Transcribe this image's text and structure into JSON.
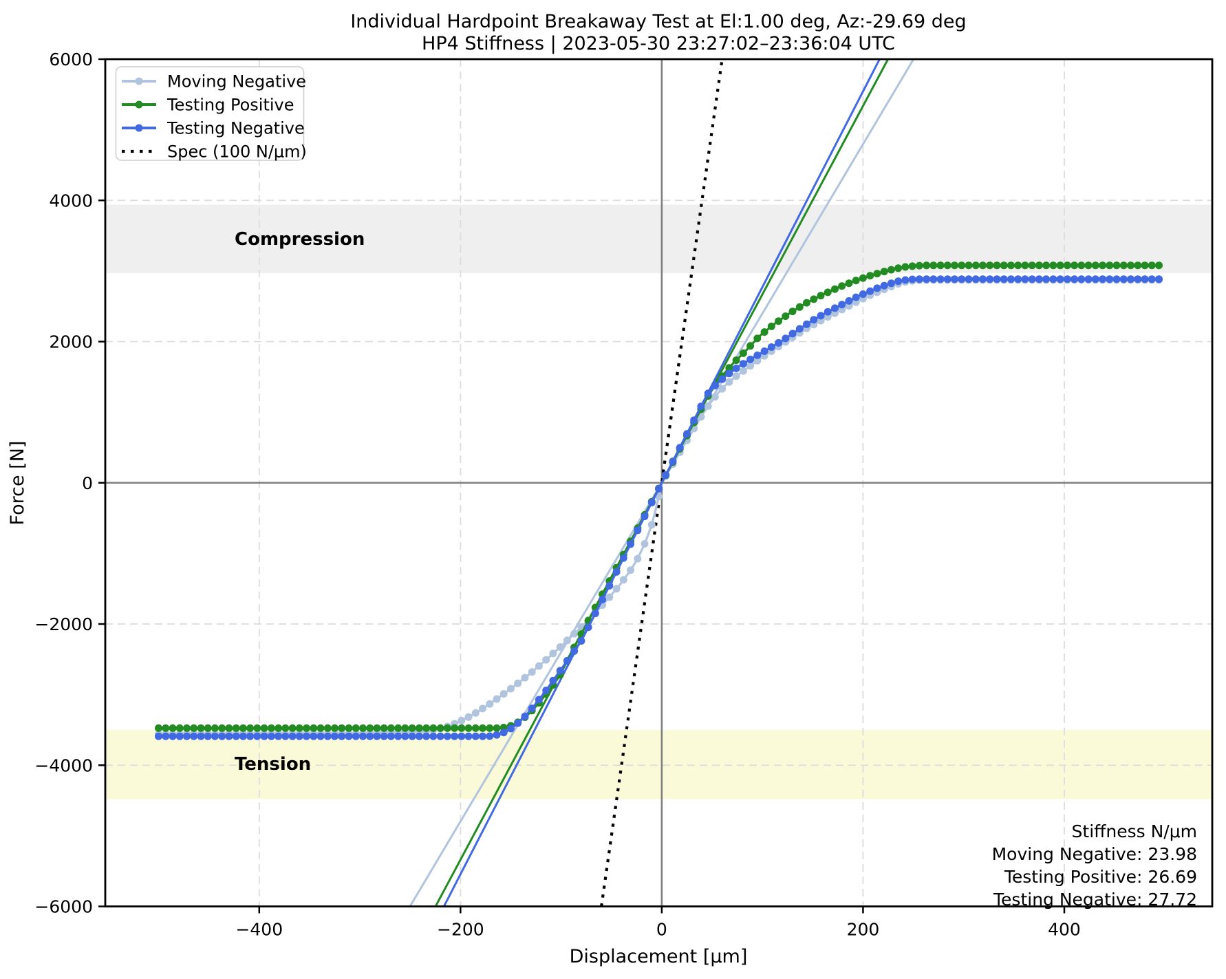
{
  "chart_data": {
    "type": "line",
    "title_line1": "Individual Hardpoint Breakaway Test at El:1.00 deg, Az:-29.69 deg",
    "title_line2": "HP4 Stiffness | 2023-05-30 23:27:02–23:36:04 UTC",
    "xlabel": "Displacement [μm]",
    "ylabel": "Force [N]",
    "xlim": [
      -553,
      547
    ],
    "ylim": [
      -6000,
      6000
    ],
    "xticks": [
      -400,
      -200,
      0,
      200,
      400
    ],
    "yticks": [
      -6000,
      -4000,
      -2000,
      0,
      2000,
      4000,
      6000
    ],
    "grid": true,
    "legend_position": "upper-left",
    "colors": {
      "moving_negative": "#b0c4de",
      "testing_positive": "#228b22",
      "testing_negative": "#4169e1",
      "spec": "#000000",
      "grid": "#dcdcdc",
      "zero_line": "#808080",
      "spine": "#000000",
      "compression_band": "#efefef",
      "tension_band": "#fafad9"
    },
    "bands": [
      {
        "name": "compression",
        "label": "Compression",
        "y0": 2970,
        "y1": 3940,
        "color": "#efefef"
      },
      {
        "name": "tension",
        "label": "Tension",
        "y0": -4480,
        "y1": -3500,
        "color": "#fafad9"
      }
    ],
    "series": [
      {
        "name": "Moving Negative",
        "color": "#b0c4de",
        "marker_step": 7,
        "plateau_negative": -3560,
        "plateau_positive": 2872,
        "points": [
          [
            -500,
            -3560
          ],
          [
            -300,
            -3555
          ],
          [
            -270,
            -3542
          ],
          [
            -248,
            -3528
          ],
          [
            -232,
            -3512
          ],
          [
            -222,
            -3488
          ],
          [
            -212,
            -3448
          ],
          [
            -202,
            -3390
          ],
          [
            -192,
            -3318
          ],
          [
            -182,
            -3235
          ],
          [
            -172,
            -3142
          ],
          [
            -162,
            -3042
          ],
          [
            -152,
            -2938
          ],
          [
            -142,
            -2830
          ],
          [
            -132,
            -2715
          ],
          [
            -122,
            -2595
          ],
          [
            -112,
            -2470
          ],
          [
            -102,
            -2340
          ],
          [
            -92,
            -2205
          ],
          [
            -82,
            -2070
          ],
          [
            -72,
            -1930
          ],
          [
            -62,
            -1780
          ],
          [
            -52,
            -1620
          ],
          [
            -42,
            -1450
          ],
          [
            -32,
            -1260
          ],
          [
            -24,
            -1075
          ],
          [
            -16,
            -835
          ],
          [
            -10,
            -595
          ],
          [
            -5,
            -320
          ],
          [
            0,
            0
          ],
          [
            10,
            240
          ],
          [
            20,
            482
          ],
          [
            30,
            722
          ],
          [
            40,
            958
          ],
          [
            48,
            1128
          ],
          [
            56,
            1272
          ],
          [
            64,
            1392
          ],
          [
            74,
            1512
          ],
          [
            86,
            1635
          ],
          [
            100,
            1780
          ],
          [
            115,
            1920
          ],
          [
            130,
            2060
          ],
          [
            145,
            2195
          ],
          [
            160,
            2312
          ],
          [
            175,
            2425
          ],
          [
            190,
            2535
          ],
          [
            205,
            2645
          ],
          [
            215,
            2705
          ],
          [
            225,
            2762
          ],
          [
            235,
            2818
          ],
          [
            245,
            2855
          ],
          [
            255,
            2868
          ],
          [
            268,
            2872
          ],
          [
            500,
            2872
          ]
        ]
      },
      {
        "name": "Testing Positive",
        "color": "#228b22",
        "marker_step": 7,
        "plateau_negative": -3475,
        "plateau_positive": 3080,
        "points": [
          [
            -500,
            -3475
          ],
          [
            -162,
            -3475
          ],
          [
            -156,
            -3465
          ],
          [
            -150,
            -3442
          ],
          [
            -144,
            -3402
          ],
          [
            -138,
            -3345
          ],
          [
            -132,
            -3270
          ],
          [
            -126,
            -3182
          ],
          [
            -120,
            -3082
          ],
          [
            -114,
            -2974
          ],
          [
            -108,
            -2862
          ],
          [
            -102,
            -2748
          ],
          [
            -96,
            -2578
          ],
          [
            -88,
            -2358
          ],
          [
            -80,
            -2142
          ],
          [
            -60,
            -1605
          ],
          [
            -40,
            -1070
          ],
          [
            -20,
            -535
          ],
          [
            0,
            0
          ],
          [
            20,
            534
          ],
          [
            40,
            1068
          ],
          [
            47,
            1256
          ],
          [
            54,
            1400
          ],
          [
            62,
            1548
          ],
          [
            72,
            1708
          ],
          [
            84,
            1878
          ],
          [
            98,
            2090
          ],
          [
            112,
            2250
          ],
          [
            128,
            2410
          ],
          [
            144,
            2550
          ],
          [
            160,
            2665
          ],
          [
            176,
            2770
          ],
          [
            192,
            2860
          ],
          [
            208,
            2938
          ],
          [
            220,
            2988
          ],
          [
            232,
            3032
          ],
          [
            244,
            3062
          ],
          [
            256,
            3076
          ],
          [
            268,
            3080
          ],
          [
            500,
            3080
          ]
        ]
      },
      {
        "name": "Testing Negative",
        "color": "#4169e1",
        "marker_step": 7,
        "plateau_negative": -3590,
        "plateau_positive": 2885,
        "points": [
          [
            -500,
            -3590
          ],
          [
            -172,
            -3590
          ],
          [
            -166,
            -3578
          ],
          [
            -160,
            -3556
          ],
          [
            -154,
            -3518
          ],
          [
            -148,
            -3462
          ],
          [
            -142,
            -3392
          ],
          [
            -136,
            -3308
          ],
          [
            -130,
            -3212
          ],
          [
            -124,
            -3108
          ],
          [
            -118,
            -2998
          ],
          [
            -112,
            -2882
          ],
          [
            -106,
            -2762
          ],
          [
            -100,
            -2642
          ],
          [
            -94,
            -2520
          ],
          [
            -88,
            -2404
          ],
          [
            -80,
            -2240
          ],
          [
            -70,
            -1962
          ],
          [
            -60,
            -1682
          ],
          [
            -40,
            -1122
          ],
          [
            -20,
            -560
          ],
          [
            0,
            0
          ],
          [
            20,
            554
          ],
          [
            40,
            1110
          ],
          [
            46,
            1266
          ],
          [
            54,
            1392
          ],
          [
            64,
            1518
          ],
          [
            76,
            1642
          ],
          [
            90,
            1765
          ],
          [
            105,
            1888
          ],
          [
            120,
            2015
          ],
          [
            135,
            2162
          ],
          [
            150,
            2302
          ],
          [
            165,
            2422
          ],
          [
            180,
            2532
          ],
          [
            195,
            2642
          ],
          [
            205,
            2702
          ],
          [
            215,
            2762
          ],
          [
            225,
            2812
          ],
          [
            235,
            2855
          ],
          [
            245,
            2880
          ],
          [
            255,
            2885
          ],
          [
            500,
            2885
          ]
        ]
      }
    ],
    "fit_lines": [
      {
        "series": "Moving Negative",
        "color": "#b0c4de",
        "slope": 23.98
      },
      {
        "series": "Testing Positive",
        "color": "#228b22",
        "slope": 26.69
      },
      {
        "series": "Testing Negative",
        "color": "#4169e1",
        "slope": 27.72
      }
    ],
    "spec_line": {
      "label": "Spec (100 N/μm)",
      "slope": 100,
      "color": "#000000",
      "style": "dotted"
    },
    "legend": [
      "Moving Negative",
      "Testing Positive",
      "Testing Negative",
      "Spec (100 N/μm)"
    ],
    "annotation": {
      "lines": [
        "Stiffness N/μm",
        "Moving Negative:  23.98",
        "Testing Positive: 26.69",
        "Testing Negative: 27.72"
      ]
    },
    "stiffness": {
      "moving_negative": 23.98,
      "testing_positive": 26.69,
      "testing_negative": 27.72
    }
  }
}
